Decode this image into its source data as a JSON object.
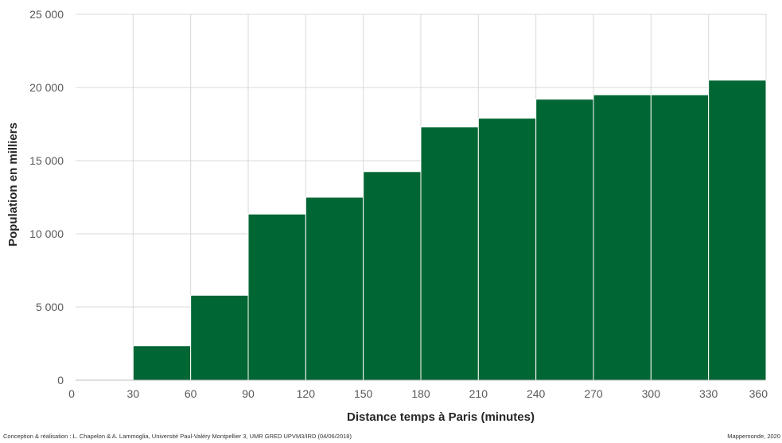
{
  "chart_data": {
    "type": "bar",
    "title": "",
    "xlabel": "Distance temps à Paris (minutes)",
    "ylabel": "Population en milliers",
    "xlim": [
      0,
      360
    ],
    "ylim": [
      0,
      25000
    ],
    "x_ticks": [
      0,
      30,
      60,
      90,
      120,
      150,
      180,
      210,
      240,
      270,
      300,
      330,
      360
    ],
    "y_ticks": [
      0,
      5000,
      10000,
      15000,
      20000,
      25000
    ],
    "y_tick_labels": [
      "0",
      "5 000",
      "10 000",
      "15 000",
      "20 000",
      "25 000"
    ],
    "bins": [
      {
        "from": 0,
        "to": 30,
        "value": 0
      },
      {
        "from": 30,
        "to": 60,
        "value": 2350
      },
      {
        "from": 60,
        "to": 90,
        "value": 5800
      },
      {
        "from": 90,
        "to": 120,
        "value": 11350
      },
      {
        "from": 120,
        "to": 150,
        "value": 12500
      },
      {
        "from": 150,
        "to": 180,
        "value": 14250
      },
      {
        "from": 180,
        "to": 210,
        "value": 17300
      },
      {
        "from": 210,
        "to": 240,
        "value": 17900
      },
      {
        "from": 240,
        "to": 270,
        "value": 19200
      },
      {
        "from": 270,
        "to": 300,
        "value": 19500
      },
      {
        "from": 300,
        "to": 330,
        "value": 19500
      },
      {
        "from": 330,
        "to": 360,
        "value": 20500
      }
    ],
    "grid": true,
    "legend": "none",
    "bar_color": "#006633",
    "grid_color": "#d9d9d9"
  },
  "footer": {
    "credit": "Conception & réalisation : L. Chapelon & A. Lammoglia, Université Paul-Valéry Montpellier 3, UMR GRED UPVM3/IRD (04/06/2018)",
    "source": "Mappemonde, 2020"
  }
}
